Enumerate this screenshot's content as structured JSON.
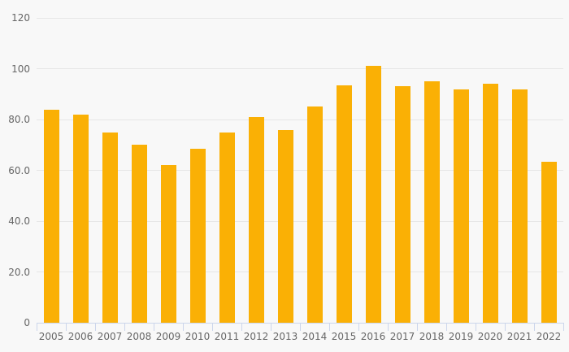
{
  "chart_data": {
    "type": "bar",
    "title": "",
    "xlabel": "",
    "ylabel": "",
    "categories": [
      "2005",
      "2006",
      "2007",
      "2008",
      "2009",
      "2010",
      "2011",
      "2012",
      "2013",
      "2014",
      "2015",
      "2016",
      "2017",
      "2018",
      "2019",
      "2020",
      "2021",
      "2022"
    ],
    "values": [
      84,
      82,
      75,
      70,
      62,
      68.5,
      75,
      81,
      76,
      85,
      93.5,
      101,
      93,
      95,
      92,
      94,
      92,
      63.5
    ],
    "ylim": [
      0,
      120
    ],
    "ytick_interval": 20,
    "ytick_labels": [
      "0",
      "20.0",
      "40.0",
      "60.0",
      "80.0",
      "100",
      "120"
    ],
    "grid": true,
    "legend": false
  },
  "style": {
    "bar_color": "#fab005",
    "background_color": "#f8f8f8",
    "gridline_color": "#e6e6e6",
    "axis_line_color": "#ccd6eb",
    "tick_color": "#ccd6eb",
    "label_color": "#666666"
  }
}
